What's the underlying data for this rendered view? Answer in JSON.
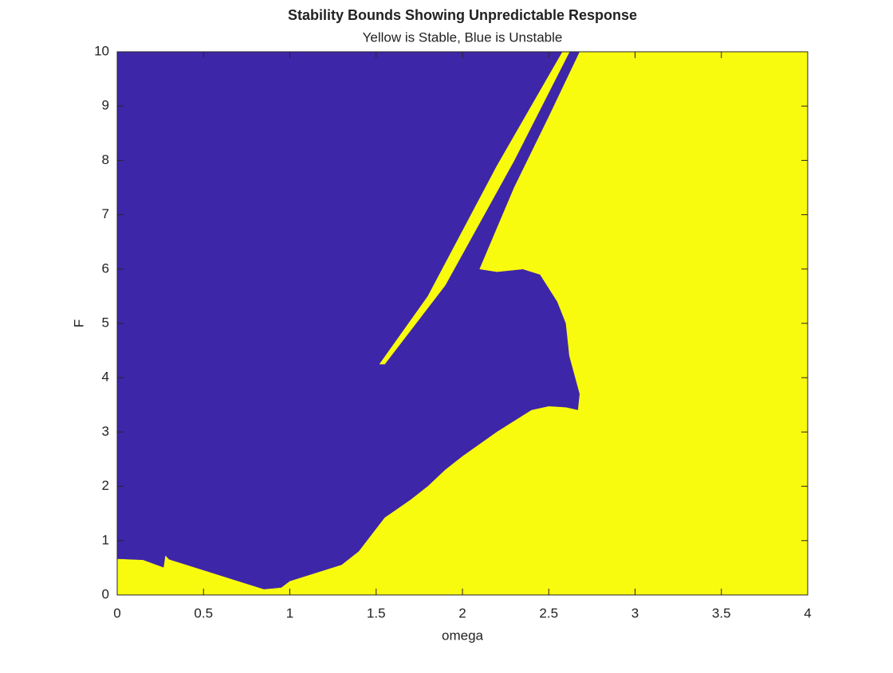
{
  "chart_data": {
    "type": "region",
    "title": "Stability Bounds Showing Unpredictable Response",
    "subtitle": "Yellow is Stable, Blue is Unstable",
    "x_label": "omega",
    "y_label": "F",
    "background_color": "#3e26a8",
    "regions": [
      {
        "color": "#f9fb0e",
        "x": [
          0,
          0.15,
          0.27,
          0.28,
          0.3,
          0.5,
          0.7,
          0.85,
          0.95,
          1.0,
          1.1,
          1.3,
          1.4,
          1.55,
          1.7,
          1.8,
          1.9,
          2.0,
          2.2,
          2.4,
          2.5,
          2.6,
          2.67,
          2.68,
          2.62,
          2.6,
          2.55,
          2.45,
          2.35,
          2.2,
          2.1,
          2.3,
          2.5,
          2.68,
          4,
          4,
          0
        ],
        "y": [
          0.66,
          0.64,
          0.5,
          0.72,
          0.65,
          0.45,
          0.25,
          0.1,
          0.13,
          0.25,
          0.35,
          0.55,
          0.8,
          1.42,
          1.75,
          2.0,
          2.3,
          2.55,
          3.0,
          3.4,
          3.47,
          3.45,
          3.4,
          3.7,
          4.4,
          5.0,
          5.4,
          5.9,
          6.0,
          5.95,
          6.0,
          7.5,
          8.8,
          10,
          10,
          0,
          0
        ]
      },
      {
        "color": "#f9fb0e",
        "x": [
          1.55,
          1.9,
          2.3,
          2.62,
          2.58,
          2.2,
          1.8,
          1.52
        ],
        "y": [
          4.25,
          5.7,
          8.0,
          10,
          10,
          7.9,
          5.5,
          4.25
        ]
      }
    ],
    "xlim": [
      0,
      4
    ],
    "xticks": [
      0,
      0.5,
      1,
      1.5,
      2,
      2.5,
      3,
      3.5,
      4
    ],
    "ylim": [
      0,
      10
    ],
    "yticks": [
      0,
      1,
      2,
      3,
      4,
      5,
      6,
      7,
      8,
      9,
      10
    ],
    "grid": false
  }
}
